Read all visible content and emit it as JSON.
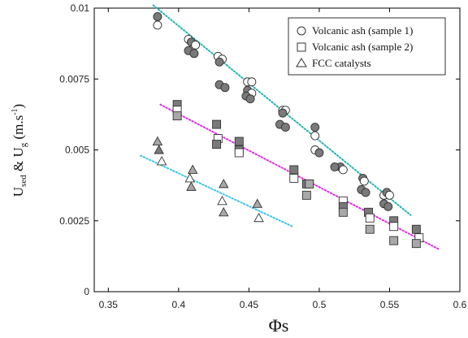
{
  "chart_data": {
    "type": "scatter",
    "xlabel": "Φs",
    "ylabel_main": "U",
    "ylabel_sub1": "sed",
    "ylabel_mid": " & U",
    "ylabel_sub2": "g",
    "ylabel_units": " (m.s",
    "ylabel_exp": "-1",
    "ylabel_close": ")",
    "xlim": [
      0.34,
      0.6
    ],
    "ylim": [
      0,
      0.01
    ],
    "x_ticks": [
      "0.35",
      "0.4",
      "0.45",
      "0.5",
      "0.55",
      "0.6"
    ],
    "y_ticks": [
      "0",
      "0.0025",
      "0.005",
      "0.0075",
      "0.01"
    ],
    "legend": {
      "placement": "top-right",
      "entries": [
        "Volcanic ash (sample 1)",
        "Volcanic ash (sample 2)",
        "FCC catalysts"
      ]
    },
    "series": [
      {
        "name": "Volcanic ash (sample 1)",
        "marker": "circle",
        "trend_color": "#1fb5b5",
        "trend": {
          "x": [
            0.382,
            0.565
          ],
          "y": [
            0.0101,
            0.0027
          ]
        },
        "points": [
          {
            "x": 0.385,
            "y": 0.0097,
            "fill": "dark"
          },
          {
            "x": 0.385,
            "y": 0.0094,
            "fill": "light"
          },
          {
            "x": 0.407,
            "y": 0.0089,
            "fill": "light"
          },
          {
            "x": 0.409,
            "y": 0.0088,
            "fill": "dark"
          },
          {
            "x": 0.412,
            "y": 0.0087,
            "fill": "light"
          },
          {
            "x": 0.407,
            "y": 0.0085,
            "fill": "dark"
          },
          {
            "x": 0.411,
            "y": 0.0084,
            "fill": "dark"
          },
          {
            "x": 0.428,
            "y": 0.0083,
            "fill": "light"
          },
          {
            "x": 0.431,
            "y": 0.0082,
            "fill": "light"
          },
          {
            "x": 0.429,
            "y": 0.0081,
            "fill": "dark"
          },
          {
            "x": 0.429,
            "y": 0.0073,
            "fill": "dark"
          },
          {
            "x": 0.433,
            "y": 0.0072,
            "fill": "dark"
          },
          {
            "x": 0.449,
            "y": 0.0074,
            "fill": "light"
          },
          {
            "x": 0.452,
            "y": 0.0074,
            "fill": "light"
          },
          {
            "x": 0.449,
            "y": 0.0071,
            "fill": "dark"
          },
          {
            "x": 0.452,
            "y": 0.007,
            "fill": "light"
          },
          {
            "x": 0.448,
            "y": 0.0069,
            "fill": "dark"
          },
          {
            "x": 0.451,
            "y": 0.0068,
            "fill": "dark"
          },
          {
            "x": 0.474,
            "y": 0.0064,
            "fill": "light"
          },
          {
            "x": 0.476,
            "y": 0.0064,
            "fill": "light"
          },
          {
            "x": 0.474,
            "y": 0.0063,
            "fill": "dark"
          },
          {
            "x": 0.472,
            "y": 0.0059,
            "fill": "dark"
          },
          {
            "x": 0.476,
            "y": 0.0058,
            "fill": "dark"
          },
          {
            "x": 0.497,
            "y": 0.0058,
            "fill": "dark"
          },
          {
            "x": 0.497,
            "y": 0.0055,
            "fill": "light"
          },
          {
            "x": 0.497,
            "y": 0.005,
            "fill": "light"
          },
          {
            "x": 0.5,
            "y": 0.0049,
            "fill": "dark"
          },
          {
            "x": 0.515,
            "y": 0.0044,
            "fill": "dark"
          },
          {
            "x": 0.517,
            "y": 0.0043,
            "fill": "light"
          },
          {
            "x": 0.511,
            "y": 0.0044,
            "fill": "dark"
          },
          {
            "x": 0.531,
            "y": 0.004,
            "fill": "dark"
          },
          {
            "x": 0.532,
            "y": 0.0039,
            "fill": "light"
          },
          {
            "x": 0.53,
            "y": 0.0036,
            "fill": "dark"
          },
          {
            "x": 0.533,
            "y": 0.0035,
            "fill": "dark"
          },
          {
            "x": 0.546,
            "y": 0.0034,
            "fill": "light"
          },
          {
            "x": 0.548,
            "y": 0.0035,
            "fill": "dark"
          },
          {
            "x": 0.55,
            "y": 0.0034,
            "fill": "light"
          },
          {
            "x": 0.546,
            "y": 0.0031,
            "fill": "dark"
          },
          {
            "x": 0.549,
            "y": 0.003,
            "fill": "dark"
          }
        ]
      },
      {
        "name": "Volcanic ash (sample 2)",
        "marker": "square",
        "trend_color": "#e02ee0",
        "trend": {
          "x": [
            0.387,
            0.585
          ],
          "y": [
            0.0066,
            0.0015
          ]
        },
        "points": [
          {
            "x": 0.399,
            "y": 0.0066,
            "fill": "dark"
          },
          {
            "x": 0.399,
            "y": 0.0064,
            "fill": "light"
          },
          {
            "x": 0.399,
            "y": 0.0062,
            "fill": "mid"
          },
          {
            "x": 0.427,
            "y": 0.0059,
            "fill": "dark"
          },
          {
            "x": 0.428,
            "y": 0.0054,
            "fill": "light"
          },
          {
            "x": 0.427,
            "y": 0.0052,
            "fill": "dark"
          },
          {
            "x": 0.443,
            "y": 0.0053,
            "fill": "dark"
          },
          {
            "x": 0.443,
            "y": 0.005,
            "fill": "dark"
          },
          {
            "x": 0.443,
            "y": 0.0049,
            "fill": "light"
          },
          {
            "x": 0.482,
            "y": 0.0043,
            "fill": "dark"
          },
          {
            "x": 0.482,
            "y": 0.004,
            "fill": "light"
          },
          {
            "x": 0.491,
            "y": 0.0038,
            "fill": "dark"
          },
          {
            "x": 0.493,
            "y": 0.0038,
            "fill": "mid"
          },
          {
            "x": 0.491,
            "y": 0.0034,
            "fill": "mid"
          },
          {
            "x": 0.517,
            "y": 0.0032,
            "fill": "light"
          },
          {
            "x": 0.517,
            "y": 0.003,
            "fill": "dark"
          },
          {
            "x": 0.517,
            "y": 0.0028,
            "fill": "mid"
          },
          {
            "x": 0.535,
            "y": 0.0028,
            "fill": "dark"
          },
          {
            "x": 0.536,
            "y": 0.0026,
            "fill": "light"
          },
          {
            "x": 0.536,
            "y": 0.0022,
            "fill": "mid"
          },
          {
            "x": 0.553,
            "y": 0.0025,
            "fill": "dark"
          },
          {
            "x": 0.553,
            "y": 0.0023,
            "fill": "light"
          },
          {
            "x": 0.553,
            "y": 0.0018,
            "fill": "mid"
          },
          {
            "x": 0.569,
            "y": 0.0022,
            "fill": "dark"
          },
          {
            "x": 0.571,
            "y": 0.0019,
            "fill": "light"
          },
          {
            "x": 0.569,
            "y": 0.0017,
            "fill": "mid"
          }
        ]
      },
      {
        "name": "FCC catalysts",
        "marker": "triangle",
        "trend_color": "#3ec5e8",
        "trend": {
          "x": [
            0.373,
            0.481
          ],
          "y": [
            0.0048,
            0.0023
          ]
        },
        "points": [
          {
            "x": 0.385,
            "y": 0.0053,
            "fill": "mid"
          },
          {
            "x": 0.386,
            "y": 0.005,
            "fill": "dark"
          },
          {
            "x": 0.388,
            "y": 0.0046,
            "fill": "light"
          },
          {
            "x": 0.41,
            "y": 0.0043,
            "fill": "mid"
          },
          {
            "x": 0.408,
            "y": 0.004,
            "fill": "light"
          },
          {
            "x": 0.409,
            "y": 0.0037,
            "fill": "mid"
          },
          {
            "x": 0.432,
            "y": 0.0038,
            "fill": "mid"
          },
          {
            "x": 0.431,
            "y": 0.0032,
            "fill": "light"
          },
          {
            "x": 0.432,
            "y": 0.0028,
            "fill": "mid"
          },
          {
            "x": 0.456,
            "y": 0.0031,
            "fill": "mid"
          },
          {
            "x": 0.457,
            "y": 0.0026,
            "fill": "light"
          }
        ]
      }
    ]
  },
  "colors": {
    "dark": "#7a7a7a",
    "mid": "#a8a8a8",
    "light": "#ffffff",
    "stroke": "#333333",
    "axis": "#000000"
  }
}
